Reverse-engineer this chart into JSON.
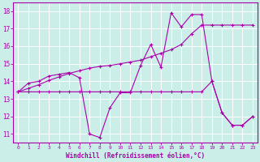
{
  "xlabel": "Windchill (Refroidissement éolien,°C)",
  "bg_color": "#cceee8",
  "line_color": "#aa00aa",
  "xlim": [
    -0.5,
    23.5
  ],
  "ylim": [
    10.5,
    18.5
  ],
  "yticks": [
    11,
    12,
    13,
    14,
    15,
    16,
    17,
    18
  ],
  "xticks": [
    0,
    1,
    2,
    3,
    4,
    5,
    6,
    7,
    8,
    9,
    10,
    11,
    12,
    13,
    14,
    15,
    16,
    17,
    18,
    19,
    20,
    21,
    22,
    23
  ],
  "series1_x": [
    0,
    1,
    2,
    3,
    4,
    5,
    6,
    7,
    8,
    9,
    10,
    11,
    12,
    13,
    14,
    15,
    16,
    17,
    18,
    19,
    20,
    21,
    22,
    23
  ],
  "series1_y": [
    13.4,
    13.9,
    14.0,
    14.3,
    14.4,
    14.5,
    14.2,
    11.0,
    10.8,
    12.5,
    13.35,
    13.35,
    14.9,
    16.1,
    14.8,
    17.9,
    17.1,
    17.8,
    17.8,
    14.0,
    12.2,
    11.5,
    11.5,
    12.0
  ],
  "series2_x": [
    0,
    1,
    2,
    3,
    4,
    5,
    6,
    7,
    8,
    9,
    10,
    11,
    12,
    13,
    14,
    15,
    16,
    17,
    18,
    19,
    20,
    21,
    22,
    23
  ],
  "series2_y": [
    13.4,
    13.4,
    13.4,
    13.4,
    13.4,
    13.4,
    13.4,
    13.4,
    13.4,
    13.4,
    13.4,
    13.4,
    13.4,
    13.4,
    13.4,
    13.4,
    13.4,
    13.4,
    13.4,
    14.0,
    12.2,
    11.5,
    11.5,
    12.0
  ],
  "series3_x": [
    0,
    1,
    2,
    3,
    4,
    5,
    6,
    7,
    8,
    9,
    10,
    11,
    12,
    13,
    14,
    15,
    16,
    17,
    18,
    19,
    20,
    21,
    22,
    23
  ],
  "series3_y": [
    13.4,
    13.6,
    13.8,
    14.05,
    14.25,
    14.45,
    14.6,
    14.75,
    14.85,
    14.9,
    15.0,
    15.1,
    15.2,
    15.4,
    15.6,
    15.8,
    16.1,
    16.7,
    17.2,
    17.2,
    17.2,
    17.2,
    17.2,
    17.2
  ]
}
